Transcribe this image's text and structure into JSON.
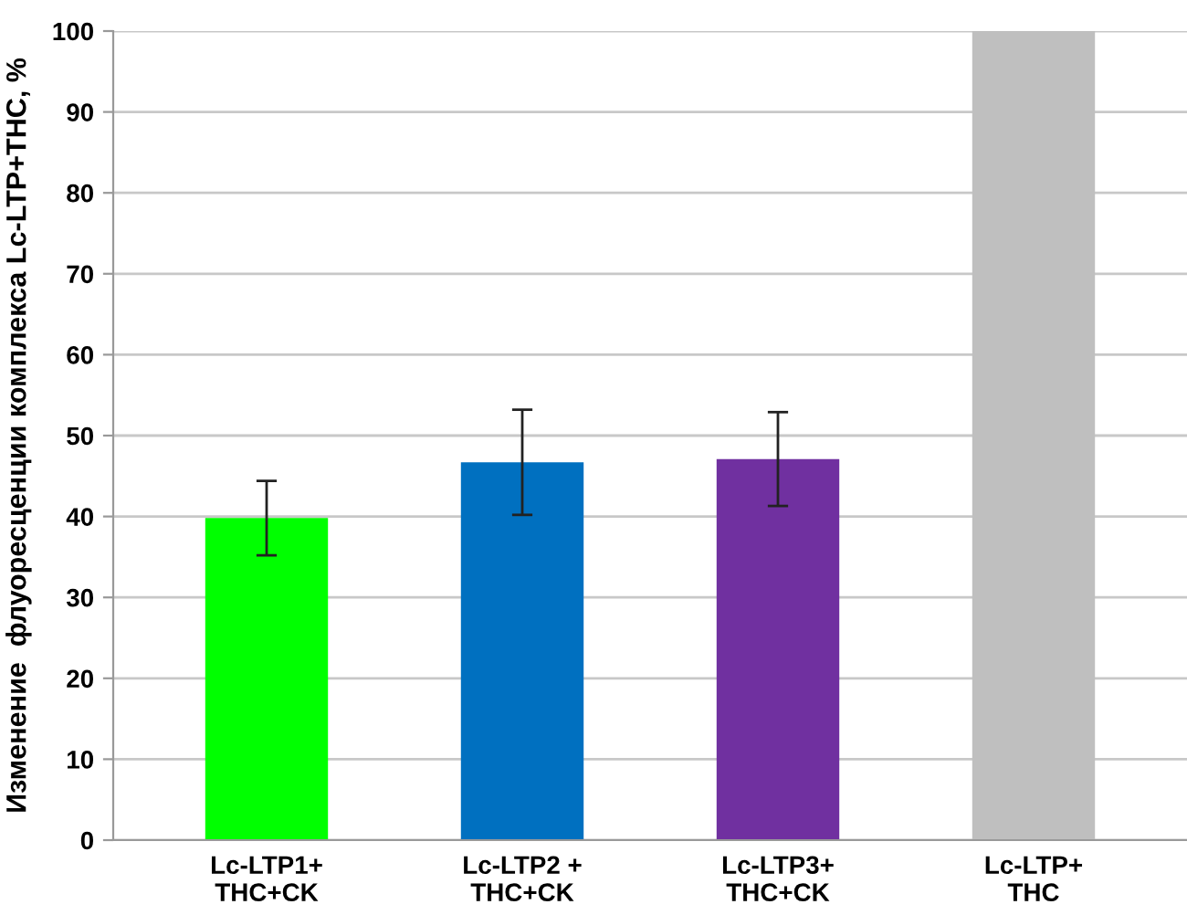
{
  "chart_data": {
    "type": "bar",
    "ylabel": "Изменение  флуоресценции комплекса Lc-LTP+THC, %",
    "categories": [
      "Lc-LTP1+\nTHC+CK",
      "Lc-LTP2 +\nTHC+CK",
      "Lc-LTP3+\nTHC+CK",
      "Lc-LTP+\nTHC"
    ],
    "values": [
      39.8,
      46.7,
      47.1,
      100
    ],
    "errors": [
      4.6,
      6.5,
      5.8,
      null
    ],
    "colors": [
      "#00ff00",
      "#0070c0",
      "#7030a0",
      "#bfbfbf"
    ],
    "ylim": [
      0,
      100
    ],
    "yticks": [
      0,
      10,
      20,
      30,
      40,
      50,
      60,
      70,
      80,
      90,
      100
    ],
    "grid": "y"
  }
}
